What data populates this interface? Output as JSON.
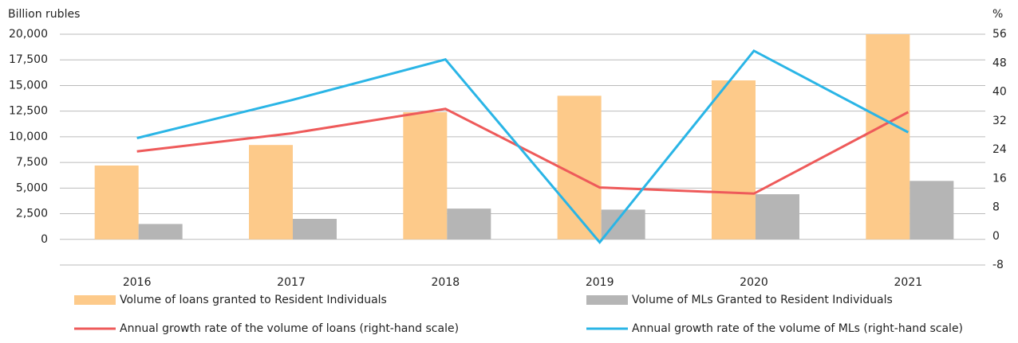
{
  "chart_data": {
    "type": "bar",
    "y_label": "Billion rubles",
    "y2_label": "%",
    "categories": [
      "2016",
      "2017",
      "2018",
      "2019",
      "2020",
      "2021"
    ],
    "series": [
      {
        "name": "Volume of loans granted to Resident Individuals",
        "type": "bar",
        "color": "#fdca8a",
        "values": [
          7200,
          9200,
          12400,
          14000,
          15500,
          20000
        ]
      },
      {
        "name": "Volume of MLs Granted to Resident Individuals",
        "type": "bar",
        "color": "#b5b5b5",
        "values": [
          1500,
          2000,
          3000,
          2900,
          4400,
          5700
        ]
      },
      {
        "name": "Annual growth rate of the volume of loans (right-hand scale)",
        "type": "line",
        "axis": "y2",
        "color": "#ee5a5a",
        "values": [
          23.5,
          28.5,
          35.3,
          13.5,
          11.8,
          34.4
        ]
      },
      {
        "name": "Annual growth rate of the volume of MLs (right-hand scale)",
        "type": "line",
        "axis": "y2",
        "color": "#2ab5e6",
        "values": [
          27.2,
          37.7,
          49,
          -1.7,
          51.4,
          28.8
        ]
      }
    ],
    "ylim": [
      -2500,
      20000
    ],
    "yticks": [
      0,
      {
        "value": 2500,
        "label": "2,500"
      },
      {
        "value": 5000,
        "label": "5,000"
      },
      {
        "value": 7500,
        "label": "7,500"
      },
      {
        "value": 10000,
        "label": "10,000"
      },
      {
        "value": 12500,
        "label": "12,500"
      },
      {
        "value": 15000,
        "label": "15,000"
      },
      {
        "value": 17500,
        "label": "17,500"
      },
      {
        "value": 20000,
        "label": "20,000"
      }
    ],
    "y2lim": [
      -8,
      56
    ],
    "y2ticks": [
      -8,
      0,
      8,
      16,
      24,
      32,
      40,
      48,
      56
    ],
    "grid": true
  }
}
